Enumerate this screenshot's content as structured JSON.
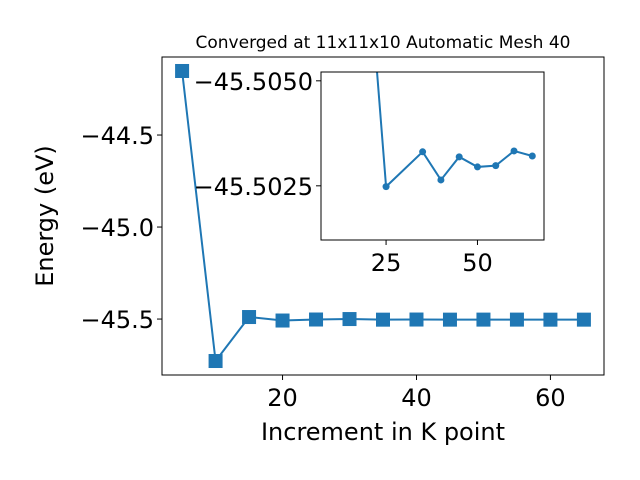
{
  "chart_data": [
    {
      "type": "line",
      "title": "Converged at 11x11x10 Automatic Mesh 40",
      "x_label": "Increment in K point",
      "y_label": "Energy (eV)",
      "x": [
        5,
        10,
        15,
        20,
        25,
        30,
        35,
        40,
        45,
        50,
        55,
        60,
        65
      ],
      "series": [
        {
          "color": "#1f77b4",
          "marker": "square",
          "values": [
            -44.152,
            -45.728,
            -45.489,
            -45.508,
            -45.5025,
            -45.5,
            -45.5033,
            -45.5026,
            -45.5032,
            -45.503,
            -45.503,
            -45.5033,
            -45.5032
          ]
        }
      ],
      "xlim": [
        2,
        68
      ],
      "xticks": [
        20,
        40,
        60
      ],
      "ylim": [
        -45.804,
        -44.076
      ],
      "yticks": [
        {
          "value": -45.5,
          "label": "−45.5"
        },
        {
          "value": -45.0,
          "label": "−45.0"
        },
        {
          "value": -44.5,
          "label": "−44.5"
        }
      ]
    },
    {
      "type": "line",
      "x": [
        20,
        25,
        35,
        40,
        45,
        50,
        55,
        60,
        65
      ],
      "series": [
        {
          "color": "#1f77b4",
          "marker": "circle",
          "values": [
            -45.508,
            -45.50248,
            -45.50331,
            -45.50264,
            -45.50319,
            -45.50295,
            -45.50298,
            -45.50333,
            -45.50321
          ]
        }
      ],
      "xlim": [
        7.2,
        68.2
      ],
      "xticks": [
        25,
        50
      ],
      "ylim": [
        -45.50121,
        -45.50521
      ],
      "yticks": [
        {
          "value": -45.5025,
          "label": "−45.5025"
        },
        {
          "value": -45.505,
          "label": "−45.5050"
        }
      ]
    }
  ]
}
